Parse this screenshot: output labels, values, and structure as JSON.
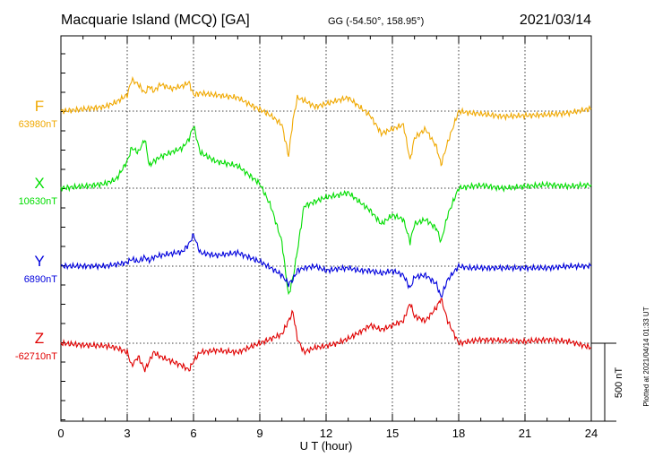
{
  "header": {
    "station": "Macquarie Island (MCQ)  [GA]",
    "coords": "GG (-54.50°, 158.95°)",
    "date": "2021/03/14"
  },
  "chart_data": {
    "type": "line",
    "xlabel": "U T (hour)",
    "xlim": [
      0,
      24
    ],
    "xticks": [
      0,
      3,
      6,
      9,
      12,
      15,
      18,
      21,
      24
    ],
    "scale_bar": "500 nT",
    "plotted_note": "Plotted at 2021/04/14 01:33 UT",
    "series": [
      {
        "name": "F",
        "baseline": "63980nT",
        "color": "#f0a800",
        "x": [
          0,
          1,
          2,
          2.5,
          3,
          3.2,
          3.5,
          3.8,
          4.0,
          4.2,
          4.5,
          5.0,
          5.5,
          5.8,
          6.0,
          6.3,
          7.0,
          8.0,
          8.5,
          9.0,
          9.5,
          10.0,
          10.3,
          10.5,
          10.7,
          11.0,
          11.5,
          12.0,
          12.5,
          13.0,
          13.5,
          14.0,
          14.5,
          15.0,
          15.5,
          15.8,
          16.0,
          16.5,
          17.0,
          17.2,
          17.5,
          18.0,
          18.5,
          19.0,
          20.0,
          21.0,
          22.0,
          23.0,
          24.0
        ],
        "values": [
          0,
          2,
          5,
          10,
          18,
          35,
          30,
          20,
          28,
          22,
          30,
          25,
          28,
          32,
          18,
          20,
          18,
          15,
          8,
          2,
          -5,
          -15,
          -50,
          -10,
          15,
          12,
          5,
          8,
          12,
          15,
          5,
          -5,
          -25,
          -20,
          -15,
          -55,
          -30,
          -20,
          -40,
          -60,
          -35,
          0,
          -2,
          -3,
          -6,
          -5,
          -4,
          -2,
          3
        ]
      },
      {
        "name": "X",
        "baseline": "10630nT",
        "color": "#00dd00",
        "x": [
          0,
          1,
          2,
          2.5,
          3,
          3.2,
          3.5,
          3.8,
          4.0,
          4.2,
          4.5,
          5.0,
          5.5,
          5.8,
          6.0,
          6.3,
          7.0,
          8.0,
          8.5,
          9.0,
          9.5,
          10.0,
          10.3,
          10.5,
          10.7,
          11.0,
          11.5,
          12.0,
          12.5,
          13.0,
          13.5,
          14.0,
          14.5,
          15.0,
          15.5,
          15.8,
          16.0,
          16.5,
          17.0,
          17.2,
          17.5,
          18.0,
          18.5,
          19.0,
          20.0,
          21.0,
          22.0,
          23.0,
          24.0
        ],
        "values": [
          0,
          2,
          5,
          10,
          30,
          45,
          40,
          55,
          25,
          30,
          35,
          40,
          45,
          55,
          70,
          40,
          30,
          25,
          15,
          5,
          -20,
          -60,
          -120,
          -100,
          -70,
          -20,
          -15,
          -10,
          -8,
          -5,
          -15,
          -25,
          -40,
          -30,
          -35,
          -60,
          -40,
          -35,
          -45,
          -60,
          -30,
          0,
          2,
          3,
          0,
          2,
          4,
          2,
          4
        ]
      },
      {
        "name": "Y",
        "baseline": "6890nT",
        "color": "#0000dd",
        "x": [
          0,
          1,
          2,
          2.5,
          3,
          3.2,
          3.5,
          3.8,
          4.0,
          4.2,
          4.5,
          5.0,
          5.5,
          5.8,
          6.0,
          6.3,
          7.0,
          8.0,
          8.5,
          9.0,
          9.5,
          10.0,
          10.3,
          10.5,
          10.7,
          11.0,
          11.5,
          12.0,
          12.5,
          13.0,
          13.5,
          14.0,
          14.5,
          15.0,
          15.5,
          15.8,
          16.0,
          16.5,
          17.0,
          17.2,
          17.5,
          18.0,
          18.5,
          19.0,
          20.0,
          21.0,
          22.0,
          23.0,
          24.0
        ],
        "values": [
          0,
          0,
          0,
          2,
          4,
          8,
          5,
          10,
          6,
          10,
          12,
          14,
          16,
          25,
          35,
          15,
          12,
          15,
          10,
          5,
          -2,
          -10,
          -20,
          -15,
          -5,
          -2,
          0,
          -5,
          -3,
          -2,
          -5,
          -5,
          -8,
          -5,
          -10,
          -25,
          -12,
          -10,
          -20,
          -35,
          -15,
          0,
          -2,
          -2,
          -2,
          -2,
          -2,
          0,
          0
        ]
      },
      {
        "name": "Z",
        "baseline": "-62710nT",
        "color": "#e00000",
        "x": [
          0,
          1,
          2,
          2.5,
          3,
          3.2,
          3.5,
          3.8,
          4.0,
          4.2,
          4.5,
          5.0,
          5.5,
          5.8,
          6.0,
          6.3,
          7.0,
          8.0,
          8.5,
          9.0,
          9.5,
          10.0,
          10.3,
          10.5,
          10.7,
          11.0,
          11.5,
          12.0,
          12.5,
          13.0,
          13.5,
          14.0,
          14.5,
          15.0,
          15.5,
          15.8,
          16.0,
          16.5,
          17.0,
          17.2,
          17.5,
          18.0,
          18.5,
          19.0,
          20.0,
          21.0,
          22.0,
          23.0,
          24.0
        ],
        "values": [
          0,
          -2,
          -3,
          -5,
          -10,
          -25,
          -15,
          -30,
          -20,
          -10,
          -15,
          -20,
          -25,
          -30,
          -20,
          -10,
          -8,
          -10,
          -5,
          0,
          5,
          10,
          25,
          35,
          5,
          -10,
          -5,
          -3,
          0,
          5,
          12,
          20,
          15,
          20,
          25,
          45,
          30,
          25,
          40,
          50,
          25,
          0,
          2,
          4,
          3,
          2,
          4,
          2,
          -5
        ]
      }
    ]
  }
}
